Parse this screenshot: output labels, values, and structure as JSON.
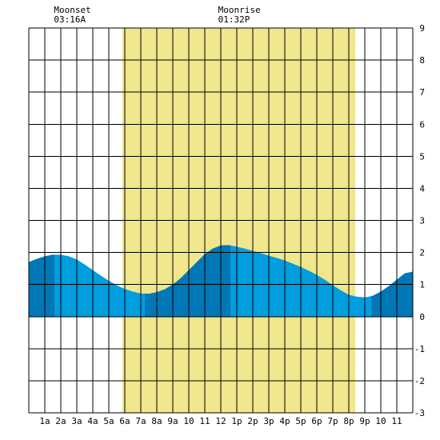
{
  "chart_data": {
    "type": "area",
    "title": "",
    "xlabel": "",
    "ylabel": "",
    "xlim": [
      0,
      24
    ],
    "ylim": [
      -3,
      9
    ],
    "y_ticks": [
      "9",
      "8",
      "7",
      "6",
      "5",
      "4",
      "3",
      "2",
      "1",
      "0",
      "-1",
      "-2",
      "-3"
    ],
    "x_ticks": [
      "1a",
      "2a",
      "3a",
      "4a",
      "5a",
      "6a",
      "7a",
      "8a",
      "9a",
      "10",
      "11",
      "12",
      "1p",
      "2p",
      "3p",
      "4p",
      "5p",
      "6p",
      "7p",
      "8p",
      "9p",
      "10",
      "11"
    ],
    "grid": true,
    "daylight": {
      "start": 5.85,
      "end": 20.4,
      "color": "#f0e68c"
    },
    "annotations": [
      {
        "label": "Moonset",
        "time": "03:16A",
        "hour": 3.27
      },
      {
        "label": "Moonrise",
        "time": "01:32P",
        "hour": 13.53
      }
    ],
    "series": [
      {
        "x": [
          0,
          0.5,
          1,
          1.5,
          2,
          2.5,
          3,
          3.5,
          4,
          4.5,
          5,
          5.5,
          6,
          6.5,
          7,
          7.5,
          8,
          8.5,
          9,
          9.5,
          10,
          10.5,
          11,
          11.5,
          12,
          12.5,
          13,
          13.5,
          14,
          14.5,
          15,
          15.5,
          16,
          16.5,
          17,
          17.5,
          18,
          18.5,
          19,
          19.5,
          20,
          20.5,
          21,
          21.5,
          22,
          22.5,
          23,
          23.5,
          24
        ],
        "values": [
          1.7,
          1.8,
          1.88,
          1.93,
          1.93,
          1.88,
          1.78,
          1.62,
          1.45,
          1.28,
          1.12,
          0.98,
          0.86,
          0.78,
          0.72,
          0.71,
          0.76,
          0.85,
          1.0,
          1.2,
          1.45,
          1.7,
          1.95,
          2.12,
          2.22,
          2.23,
          2.18,
          2.12,
          2.05,
          1.98,
          1.9,
          1.83,
          1.75,
          1.65,
          1.55,
          1.43,
          1.3,
          1.15,
          0.98,
          0.82,
          0.68,
          0.62,
          0.6,
          0.65,
          0.78,
          0.95,
          1.15,
          1.35,
          1.4
        ]
      }
    ],
    "colors": {
      "tide_light": "#009ddf",
      "tide_dark": "#0077b6",
      "daylight": "#f0e68c",
      "grid": "#000000"
    },
    "dark_bands": [
      [
        0,
        1.6
      ],
      [
        7.25,
        12.6
      ],
      [
        21.4,
        24
      ]
    ]
  }
}
